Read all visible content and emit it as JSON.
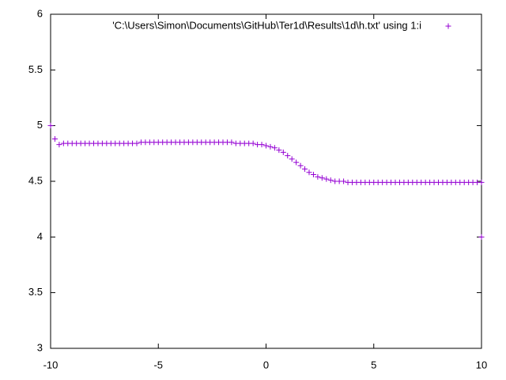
{
  "chart_data": {
    "type": "scatter",
    "series": [
      {
        "name": "'C:\\Users\\Simon\\Documents\\GitHub\\Ter1d\\Results\\1d\\h.txt' using 1:i",
        "color": "#9400d3",
        "x": [
          -10,
          -9.8,
          -9.6,
          -9.4,
          -9.2,
          -9,
          -8.8,
          -8.6,
          -8.4,
          -8.2,
          -8,
          -7.8,
          -7.6,
          -7.4,
          -7.2,
          -7,
          -6.8,
          -6.6,
          -6.4,
          -6.2,
          -6,
          -5.8,
          -5.6,
          -5.4,
          -5.2,
          -5,
          -4.8,
          -4.6,
          -4.4,
          -4.2,
          -4,
          -3.8,
          -3.6,
          -3.4,
          -3.2,
          -3,
          -2.8,
          -2.6,
          -2.4,
          -2.2,
          -2,
          -1.8,
          -1.6,
          -1.4,
          -1.2,
          -1,
          -0.8,
          -0.6,
          -0.4,
          -0.2,
          0,
          0.2,
          0.4,
          0.6,
          0.8,
          1,
          1.2,
          1.4,
          1.6,
          1.8,
          2,
          2.2,
          2.4,
          2.6,
          2.8,
          3,
          3.2,
          3.4,
          3.6,
          3.8,
          4,
          4.2,
          4.4,
          4.6,
          4.8,
          5,
          5.2,
          5.4,
          5.6,
          5.8,
          6,
          6.2,
          6.4,
          6.6,
          6.8,
          7,
          7.2,
          7.4,
          7.6,
          7.8,
          8,
          8.2,
          8.4,
          8.6,
          8.8,
          9,
          9.2,
          9.4,
          9.6,
          9.8,
          10,
          10
        ],
        "values": [
          5,
          4.88,
          4.83,
          4.84,
          4.84,
          4.84,
          4.84,
          4.84,
          4.84,
          4.84,
          4.84,
          4.84,
          4.84,
          4.84,
          4.84,
          4.84,
          4.84,
          4.84,
          4.84,
          4.84,
          4.84,
          4.85,
          4.85,
          4.85,
          4.85,
          4.85,
          4.85,
          4.85,
          4.85,
          4.85,
          4.85,
          4.85,
          4.85,
          4.85,
          4.85,
          4.85,
          4.85,
          4.85,
          4.85,
          4.85,
          4.85,
          4.85,
          4.85,
          4.84,
          4.84,
          4.84,
          4.84,
          4.84,
          4.83,
          4.83,
          4.82,
          4.81,
          4.8,
          4.78,
          4.76,
          4.73,
          4.7,
          4.67,
          4.64,
          4.61,
          4.58,
          4.56,
          4.54,
          4.53,
          4.52,
          4.51,
          4.5,
          4.5,
          4.5,
          4.49,
          4.49,
          4.49,
          4.49,
          4.49,
          4.49,
          4.49,
          4.49,
          4.49,
          4.49,
          4.49,
          4.49,
          4.49,
          4.49,
          4.49,
          4.49,
          4.49,
          4.49,
          4.49,
          4.49,
          4.49,
          4.49,
          4.49,
          4.49,
          4.49,
          4.49,
          4.49,
          4.49,
          4.49,
          4.49,
          4.49,
          4.49,
          4
        ]
      }
    ],
    "xlim": [
      -10,
      10
    ],
    "xticks": [
      -10,
      -5,
      0,
      5,
      10
    ],
    "ylim": [
      3,
      6
    ],
    "yticks": [
      3,
      3.5,
      4,
      4.5,
      5,
      5.5,
      6
    ],
    "grid": false,
    "legend": "top-right"
  }
}
